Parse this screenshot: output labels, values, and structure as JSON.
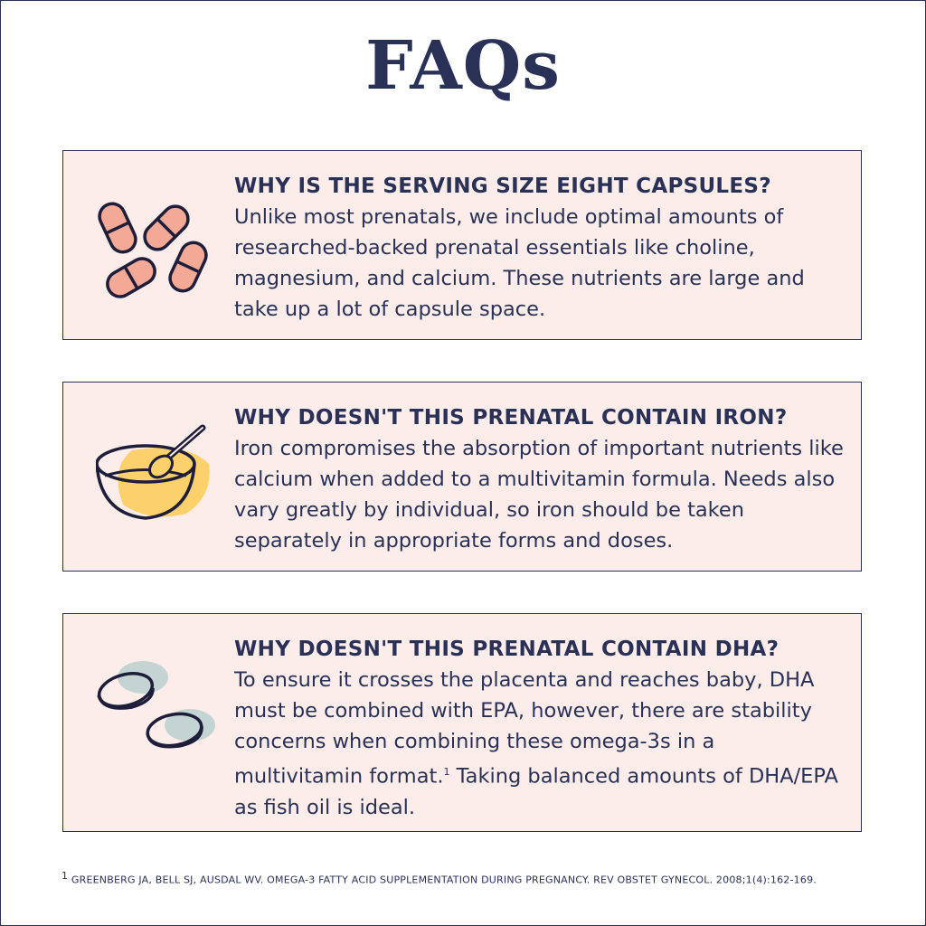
{
  "title": "FAQs",
  "faqs": [
    {
      "icon": "capsules-icon",
      "question": "WHY IS THE SERVING SIZE EIGHT CAPSULES?",
      "answer": "Unlike most prenatals, we include optimal amounts of researched-backed prenatal essentials like choline, magnesium, and calcium. These nutrients are large and take up a lot of capsule space."
    },
    {
      "icon": "bowl-spoon-icon",
      "question": "WHY DOESN'T THIS PRENATAL CONTAIN IRON?",
      "answer": "Iron compromises the absorption of important nutrients like calcium when added to a multivitamin formula. Needs also vary greatly by individual, so iron should be taken separately in appropriate forms and doses."
    },
    {
      "icon": "softgels-icon",
      "question": "WHY DOESN'T THIS PRENATAL CONTAIN DHA?",
      "answer_before": "To ensure it crosses the placenta and reaches baby, DHA must be combined with EPA, however, there are stability concerns when combining these omega-3s in a multivitamin format.",
      "footnote_ref": "1",
      "answer_after": " Taking balanced amounts of DHA/EPA as fish oil is ideal."
    }
  ],
  "footnote": {
    "marker": "1",
    "text": "GREENBERG JA, BELL SJ, AUSDAL WV. OMEGA-3 FATTY ACID SUPPLEMENTATION DURING PREGNANCY. REV OBSTET GYNECOL. 2008;1(4):162-169."
  },
  "colors": {
    "navy": "#2a3156",
    "card_bg": "#fdedea",
    "pink": "#f4a996",
    "yellow": "#fcd06a",
    "sage": "#c3d4d3"
  }
}
